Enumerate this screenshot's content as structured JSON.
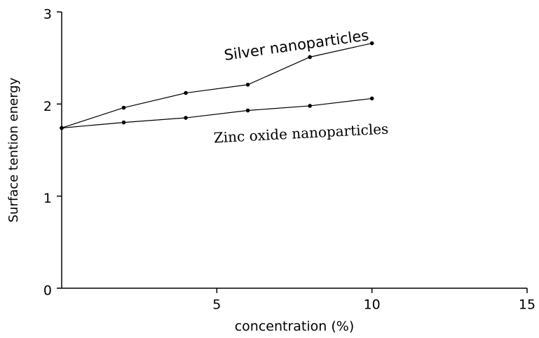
{
  "chart_data": {
    "type": "line",
    "y_label": "Surface tention energy",
    "x_label": "concentration (%)",
    "series": [
      {
        "name": "Silver nanoparticles",
        "color": "#000000",
        "x": [
          0,
          2,
          4,
          6,
          8,
          10
        ],
        "values": [
          1.74,
          1.96,
          2.12,
          2.21,
          2.51,
          2.66
        ]
      },
      {
        "name": "Zinc oxide nanoparticles",
        "color": "#000000",
        "x": [
          0,
          2,
          4,
          6,
          8,
          10
        ],
        "values": [
          1.74,
          1.8,
          1.85,
          1.93,
          1.98,
          2.06
        ]
      }
    ],
    "xlim": [
      0,
      15
    ],
    "xticks": [
      5,
      10,
      15
    ],
    "ylim": [
      0,
      3
    ],
    "yticks": [
      0,
      1,
      2,
      3
    ],
    "grid": false
  }
}
